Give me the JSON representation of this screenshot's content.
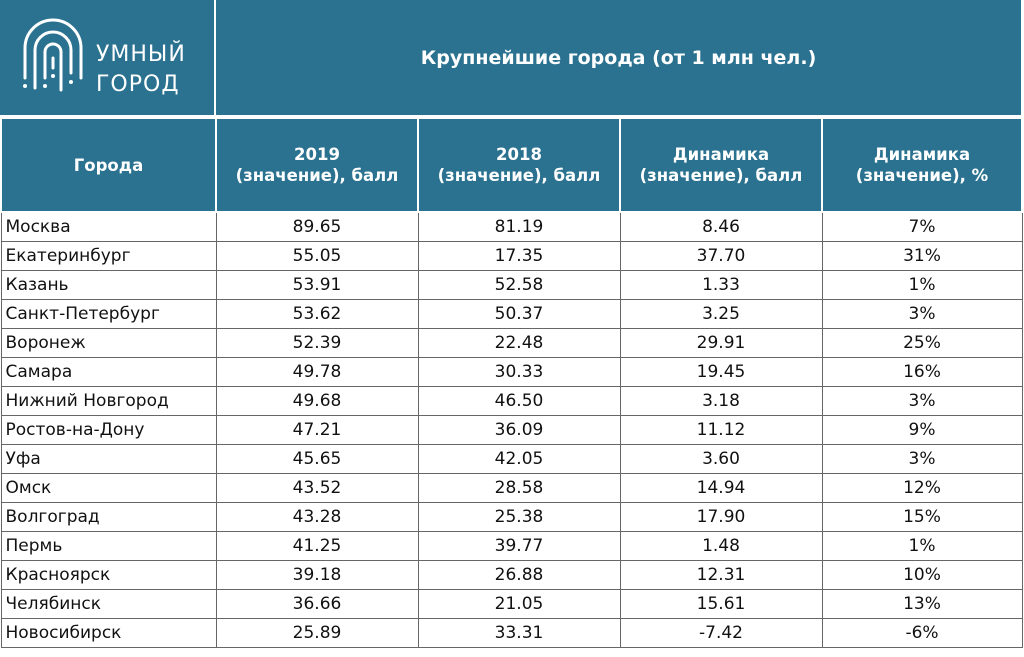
{
  "header": {
    "logo": [
      "УМНЫЙ",
      "ГОРОД"
    ],
    "title": "Крупнейшие города (от 1 млн чел.)"
  },
  "table": {
    "columns": [
      [
        "Города"
      ],
      [
        "2019",
        "(значение), балл"
      ],
      [
        "2018",
        "(значение), балл"
      ],
      [
        "Динамика",
        "(значение), балл"
      ],
      [
        "Динамика",
        "(значение), %"
      ]
    ],
    "rows": [
      [
        "Москва",
        "89.65",
        "81.19",
        "8.46",
        "7%"
      ],
      [
        "Екатеринбург",
        "55.05",
        "17.35",
        "37.70",
        "31%"
      ],
      [
        "Казань",
        "53.91",
        "52.58",
        "1.33",
        "1%"
      ],
      [
        "Санкт-Петербург",
        "53.62",
        "50.37",
        "3.25",
        "3%"
      ],
      [
        "Воронеж",
        "52.39",
        "22.48",
        "29.91",
        "25%"
      ],
      [
        "Самара",
        "49.78",
        "30.33",
        "19.45",
        "16%"
      ],
      [
        "Нижний Новгород",
        "49.68",
        "46.50",
        "3.18",
        "3%"
      ],
      [
        "Ростов-на-Дону",
        "47.21",
        "36.09",
        "11.12",
        "9%"
      ],
      [
        "Уфа",
        "45.65",
        "42.05",
        "3.60",
        "3%"
      ],
      [
        "Омск",
        "43.52",
        "28.58",
        "14.94",
        "12%"
      ],
      [
        "Волгоград",
        "43.28",
        "25.38",
        "17.90",
        "15%"
      ],
      [
        "Пермь",
        "41.25",
        "39.77",
        "1.48",
        "1%"
      ],
      [
        "Красноярск",
        "39.18",
        "26.88",
        "12.31",
        "10%"
      ],
      [
        "Челябинск",
        "36.66",
        "21.05",
        "15.61",
        "13%"
      ],
      [
        "Новосибирск",
        "25.89",
        "33.31",
        "-7.42",
        "-6%"
      ]
    ]
  }
}
